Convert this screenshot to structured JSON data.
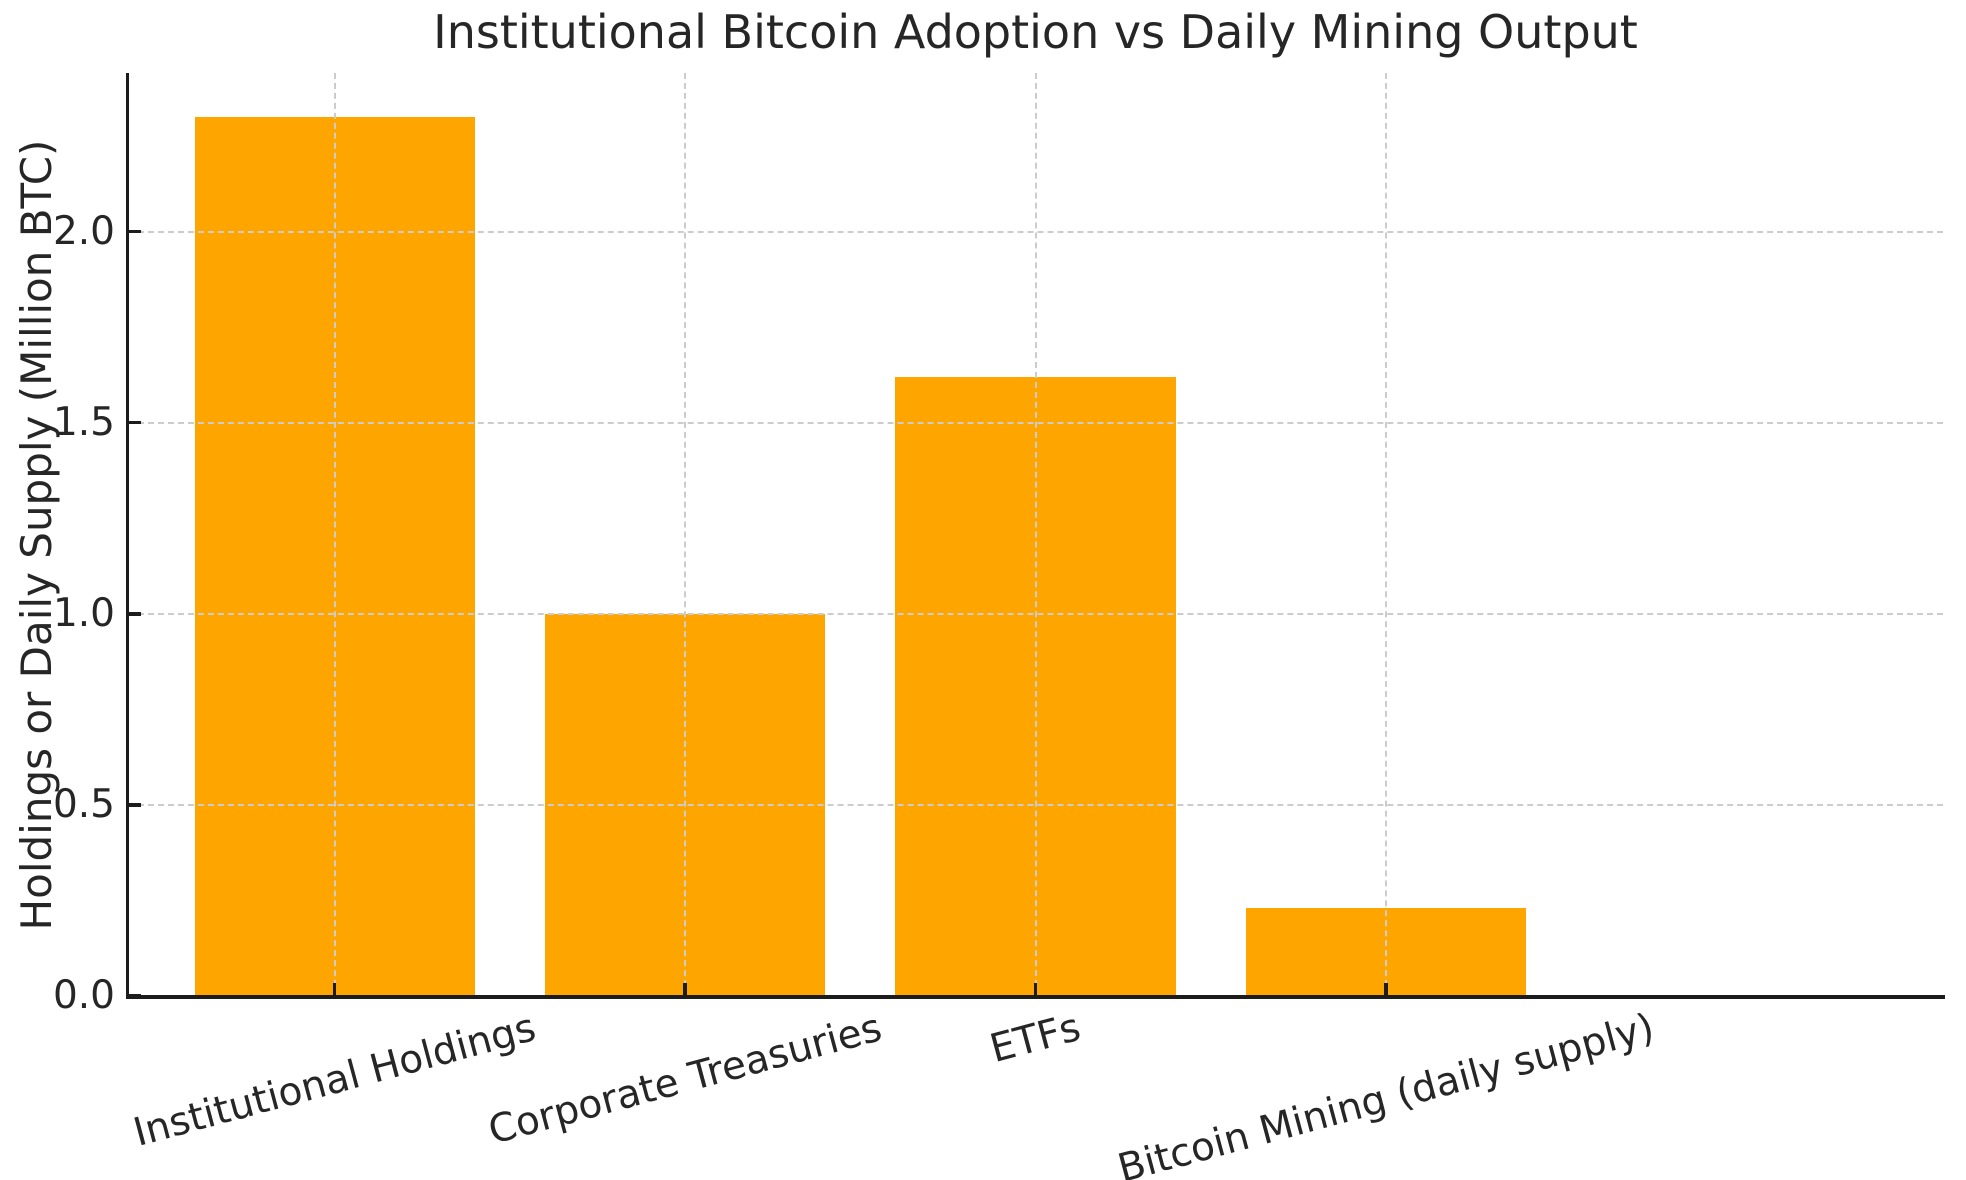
{
  "chart_data": {
    "type": "bar",
    "title": "Institutional Bitcoin Adoption vs Daily Mining Output",
    "categories": [
      "Institutional Holdings",
      "Corporate Treasuries",
      "ETFs",
      "Bitcoin Mining (daily supply)"
    ],
    "values": [
      2.3,
      1.0,
      1.62,
      0.23
    ],
    "xlabel": "",
    "ylabel": "Holdings or Daily Supply (Million BTC)",
    "ylim": [
      0,
      2.415
    ],
    "yticks": [
      0.0,
      0.5,
      1.0,
      1.5,
      2.0
    ],
    "ytick_labels": [
      "0.0",
      "0.5",
      "1.0",
      "1.5",
      "2.0"
    ],
    "xtick_rotation_deg": 15,
    "grid": true,
    "grid_style": "dashed",
    "grid_over_bars": true,
    "legend": null,
    "bar_color": "#FFA500",
    "grid_color": "#CCCCCC",
    "axis_color": "#1C1C1C",
    "text_color": "#262626",
    "background": "#FFFFFF"
  }
}
